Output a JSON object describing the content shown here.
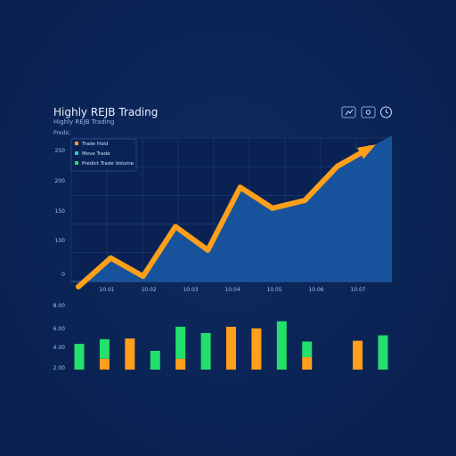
{
  "header": {
    "title": "Highly REJB Trading",
    "subtitle": "Highly REJB Trading",
    "section_label": "Predic."
  },
  "icons": {
    "first": "chart-icon",
    "second": "settings-icon",
    "third": "timer-icon"
  },
  "legend": {
    "items": [
      {
        "label": "Trade Hold",
        "color": "#ff9f1a"
      },
      {
        "label": "Move Trade",
        "color": "#33c8b6"
      },
      {
        "label": "Predict Trade Volume",
        "color": "#22e06b"
      }
    ]
  },
  "chart_data": [
    {
      "type": "line",
      "title": "Highly REJB Trading",
      "x_tick_labels": [
        "10.01",
        "10.02",
        "10.03",
        "10.04",
        "10.05",
        "10.06",
        "10.07"
      ],
      "y_tick_labels": [
        "0",
        "100",
        "150",
        "200",
        "250"
      ],
      "ylim": [
        0,
        250
      ],
      "series": [
        {
          "name": "Trade Hold",
          "values": [
            0,
            55,
            20,
            115,
            70,
            190,
            150,
            165,
            230,
            265
          ]
        }
      ],
      "fill": true,
      "arrow": true
    },
    {
      "type": "bar",
      "y_tick_labels": [
        "2.00",
        "4.00",
        "6.00",
        "8.00"
      ],
      "ylim": [
        0,
        8
      ],
      "series": [
        {
          "name": "Predict Trade Volume",
          "values": [
            3.3,
            2.5,
            0,
            2.4,
            4.1,
            4.7,
            0,
            0,
            6.2,
            2.0,
            0,
            0,
            4.4
          ]
        },
        {
          "name": "Trade Hold",
          "values": [
            0,
            1.4,
            4.0,
            0,
            1.4,
            0,
            5.5,
            5.3,
            0,
            1.6,
            0,
            3.7,
            0
          ]
        }
      ]
    }
  ]
}
